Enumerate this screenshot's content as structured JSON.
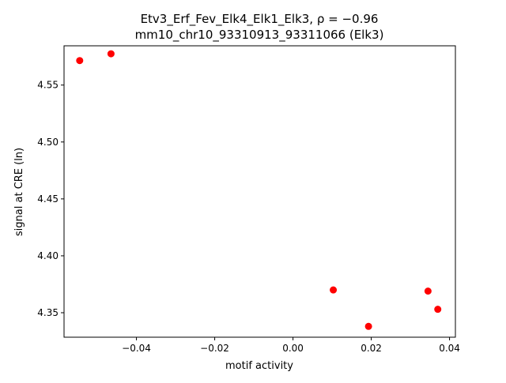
{
  "chart_data": {
    "type": "scatter",
    "title_line1": "Etv3_Erf_Fev_Elk4_Elk1_Elk3, ρ = −0.96",
    "title_line2": "mm10_chr10_93310913_93311066 (Elk3)",
    "xlabel": "motif activity",
    "ylabel": "signal at CRE (ln)",
    "xlim": [
      -0.0585,
      0.0415
    ],
    "ylim": [
      4.3285,
      4.5845
    ],
    "x_ticks": [
      -0.04,
      -0.02,
      0.0,
      0.02,
      0.04
    ],
    "x_tick_labels": [
      "−0.04",
      "−0.02",
      "0.00",
      "0.02",
      "0.04"
    ],
    "y_ticks": [
      4.35,
      4.4,
      4.45,
      4.5,
      4.55
    ],
    "y_tick_labels": [
      "4.35",
      "4.40",
      "4.45",
      "4.50",
      "4.55"
    ],
    "points": [
      {
        "x": -0.0545,
        "y": 4.5715
      },
      {
        "x": -0.0465,
        "y": 4.5775
      },
      {
        "x": 0.0103,
        "y": 4.37
      },
      {
        "x": 0.0193,
        "y": 4.338
      },
      {
        "x": 0.0345,
        "y": 4.369
      },
      {
        "x": 0.037,
        "y": 4.353
      }
    ],
    "marker_color": "#ff0000",
    "grid": false
  }
}
